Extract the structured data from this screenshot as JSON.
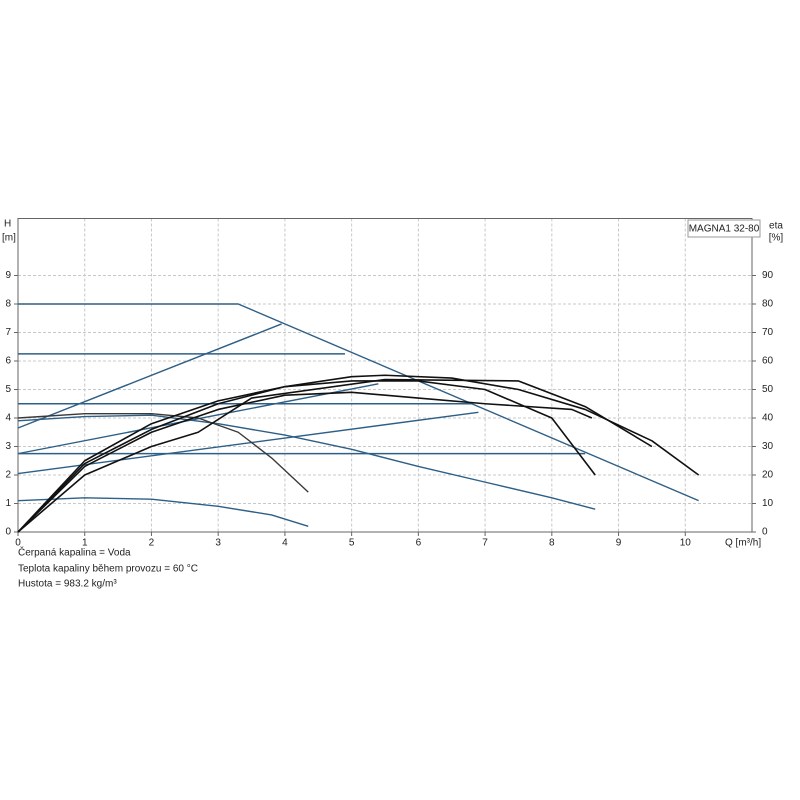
{
  "chart_data": {
    "type": "line",
    "title": "MAGNA1 32-80",
    "y_label": "H",
    "y_unit": "[m]",
    "y2_label": "eta",
    "y2_unit": "[%]",
    "x_label": "Q [m³/h]",
    "xlim": [
      0,
      11
    ],
    "xticks": [
      0,
      1,
      2,
      3,
      4,
      5,
      6,
      7,
      8,
      9,
      10
    ],
    "ylim": [
      0,
      11
    ],
    "yticks": [
      0,
      1,
      2,
      3,
      4,
      5,
      6,
      7,
      8,
      9
    ],
    "y2lim": [
      0,
      110
    ],
    "y2ticks": [
      0,
      10,
      20,
      30,
      40,
      50,
      60,
      70,
      80,
      90
    ],
    "grid": true,
    "series": [
      {
        "color": "#2e5f86",
        "x": [
          0,
          3.3,
          10.2
        ],
        "values": [
          8,
          8,
          1.1
        ]
      },
      {
        "color": "#2e5f86",
        "x": [
          0,
          4.9
        ],
        "values": [
          6.25,
          6.25
        ]
      },
      {
        "color": "#2e5f86",
        "x": [
          0,
          6.8
        ],
        "values": [
          4.5,
          4.5
        ]
      },
      {
        "color": "#2e5f86",
        "x": [
          0,
          8.5
        ],
        "values": [
          2.75,
          2.75
        ]
      },
      {
        "color": "#2e5f86",
        "x": [
          0,
          3.95
        ],
        "values": [
          3.65,
          7.3
        ]
      },
      {
        "color": "#2e5f86",
        "x": [
          0,
          5.4
        ],
        "values": [
          2.75,
          5.2
        ]
      },
      {
        "color": "#2e5f86",
        "x": [
          0,
          6.9
        ],
        "values": [
          2.05,
          4.2
        ]
      },
      {
        "color": "#2e5f86",
        "x": [
          0,
          1,
          2,
          3,
          4,
          5,
          6,
          7,
          8,
          8.65
        ],
        "values": [
          3.9,
          4.05,
          4.1,
          3.8,
          3.4,
          2.9,
          2.3,
          1.75,
          1.2,
          0.8
        ]
      },
      {
        "color": "#3a3a3a",
        "x": [
          0,
          1,
          2,
          2.7,
          3.3,
          3.8,
          4.35
        ],
        "values": [
          4.0,
          4.15,
          4.15,
          4.0,
          3.5,
          2.6,
          1.4
        ]
      },
      {
        "color": "#2e5f86",
        "x": [
          0,
          1,
          2,
          3,
          3.8,
          4.35
        ],
        "values": [
          1.1,
          1.2,
          1.15,
          0.9,
          0.6,
          0.2
        ]
      },
      {
        "color": "#111111",
        "axis": "y2",
        "x": [
          0,
          1,
          2,
          3,
          4,
          5,
          5.5,
          6.5,
          7.5,
          8.5,
          9.5,
          10.2
        ],
        "values": [
          0,
          24,
          36,
          45,
          51,
          54.5,
          55,
          54,
          50,
          43,
          32,
          20
        ]
      },
      {
        "color": "#111111",
        "axis": "y2",
        "x": [
          0,
          1,
          2,
          3,
          4,
          5,
          6,
          7,
          8,
          8.65
        ],
        "values": [
          0,
          25,
          38,
          46,
          51,
          53,
          53,
          50,
          40,
          20
        ]
      },
      {
        "color": "#111111",
        "axis": "y2",
        "x": [
          0,
          1,
          2,
          3,
          4,
          5,
          6,
          7,
          8.3,
          8.6
        ],
        "values": [
          0,
          23,
          35,
          43,
          48,
          49,
          47,
          45,
          43,
          40
        ]
      },
      {
        "color": "#111111",
        "axis": "y2",
        "x": [
          0,
          1,
          2,
          2.7,
          3.5,
          5.5,
          7.5,
          8.5,
          9.5
        ],
        "values": [
          0,
          20,
          30,
          35,
          47,
          53.5,
          53,
          44,
          30
        ]
      }
    ],
    "notes": [
      "Čerpaná kapalina = Voda",
      "Teplota kapaliny během provozu = 60 °C",
      "Hustota = 983.2 kg/m³"
    ]
  }
}
